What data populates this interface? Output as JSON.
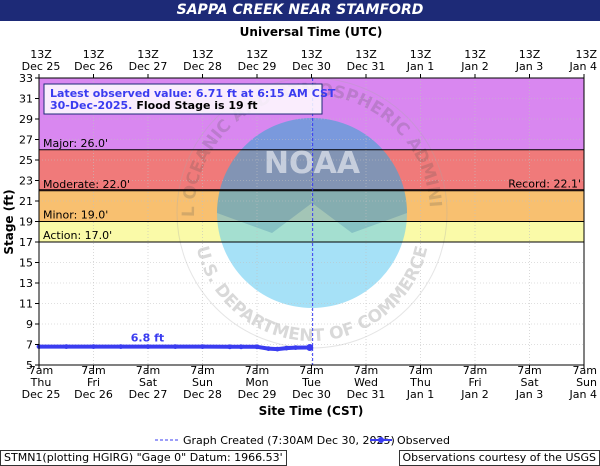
{
  "header": {
    "title": "SAPPA CREEK NEAR STAMFORD",
    "top_axis_title": "Universal Time (UTC)"
  },
  "colors": {
    "title_bar": "#1d2a77",
    "series": "#3a3cf0",
    "major": "#d987f0",
    "moderate": "#f07a7a",
    "minor": "#f8c070",
    "action": "#fafaa8",
    "logo": "#5cc8f0"
  },
  "chart_data": {
    "type": "line",
    "xlabel": "Site Time (CST)",
    "ylabel": "Stage (ft)",
    "ylim": [
      5,
      33
    ],
    "y_ticks": [
      5,
      7,
      9,
      11,
      13,
      15,
      17,
      19,
      21,
      23,
      25,
      27,
      29,
      31,
      33
    ],
    "x_range": [
      "2025-12-25T07:00",
      "2026-01-04T07:00"
    ],
    "x_ticks_bottom": [
      {
        "time": "7am",
        "day": "Thu",
        "date": "Dec 25"
      },
      {
        "time": "7am",
        "day": "Fri",
        "date": "Dec 26"
      },
      {
        "time": "7am",
        "day": "Sat",
        "date": "Dec 27"
      },
      {
        "time": "7am",
        "day": "Sun",
        "date": "Dec 28"
      },
      {
        "time": "7am",
        "day": "Mon",
        "date": "Dec 29"
      },
      {
        "time": "7am",
        "day": "Tue",
        "date": "Dec 30"
      },
      {
        "time": "7am",
        "day": "Wed",
        "date": "Dec 31"
      },
      {
        "time": "7am",
        "day": "Thu",
        "date": "Jan 1"
      },
      {
        "time": "7am",
        "day": "Fri",
        "date": "Jan 2"
      },
      {
        "time": "7am",
        "day": "Sat",
        "date": "Jan 3"
      },
      {
        "time": "7am",
        "day": "Sun",
        "date": "Jan 4"
      }
    ],
    "x_ticks_top": [
      {
        "time": "13Z",
        "date": "Dec 25"
      },
      {
        "time": "13Z",
        "date": "Dec 26"
      },
      {
        "time": "13Z",
        "date": "Dec 27"
      },
      {
        "time": "13Z",
        "date": "Dec 28"
      },
      {
        "time": "13Z",
        "date": "Dec 29"
      },
      {
        "time": "13Z",
        "date": "Dec 30"
      },
      {
        "time": "13Z",
        "date": "Dec 31"
      },
      {
        "time": "13Z",
        "date": "Jan 1"
      },
      {
        "time": "13Z",
        "date": "Jan 2"
      },
      {
        "time": "13Z",
        "date": "Jan 3"
      },
      {
        "time": "13Z",
        "date": "Jan 4"
      }
    ],
    "flood_bands": [
      {
        "name": "major",
        "label": "Major: 26.0'",
        "from": 26,
        "to": 33
      },
      {
        "name": "moderate",
        "label": "Moderate: 22.0'",
        "from": 22,
        "to": 26
      },
      {
        "name": "minor",
        "label": "Minor: 19.0'",
        "from": 19,
        "to": 22
      },
      {
        "name": "action",
        "label": "Action: 17.0'",
        "from": 17,
        "to": 19
      }
    ],
    "record": {
      "label": "Record: 22.1'",
      "value": 22.1
    },
    "graph_created": "2025-12-30T07:30",
    "series": [
      {
        "name": "Observed",
        "points": [
          [
            "2025-12-25T07:00",
            6.8
          ],
          [
            "2025-12-25T19:00",
            6.8
          ],
          [
            "2025-12-26T07:00",
            6.8
          ],
          [
            "2025-12-26T19:00",
            6.8
          ],
          [
            "2025-12-27T07:00",
            6.8
          ],
          [
            "2025-12-27T19:00",
            6.8
          ],
          [
            "2025-12-28T07:00",
            6.8
          ],
          [
            "2025-12-28T19:00",
            6.78
          ],
          [
            "2025-12-29T00:00",
            6.78
          ],
          [
            "2025-12-29T07:00",
            6.78
          ],
          [
            "2025-12-29T12:00",
            6.6
          ],
          [
            "2025-12-29T16:00",
            6.55
          ],
          [
            "2025-12-29T20:00",
            6.65
          ],
          [
            "2025-12-30T00:00",
            6.7
          ],
          [
            "2025-12-30T06:15",
            6.71
          ]
        ]
      }
    ],
    "annotations": {
      "peak_label": "6.8 ft",
      "latest_value": "Latest observed value: 6.71 ft at 6:15 AM CST",
      "latest_date": "30-Dec-2025.",
      "flood_stage_text": "Flood Stage is 19 ft"
    },
    "legend": {
      "graph_created": "Graph Created (7:30AM Dec 30, 2025)",
      "observed": "Observed"
    }
  },
  "footer": {
    "station": "STMN1(plotting HGIRG) \"Gage 0\" Datum: 1966.53'",
    "credit": "Observations courtesy of the USGS"
  },
  "watermark": {
    "logo_text": "NOAA",
    "ring_top": "NATIONAL OCEANIC AND ATMOSPHERIC ADMINISTRATION",
    "ring_bottom": "U.S. DEPARTMENT OF COMMERCE"
  }
}
